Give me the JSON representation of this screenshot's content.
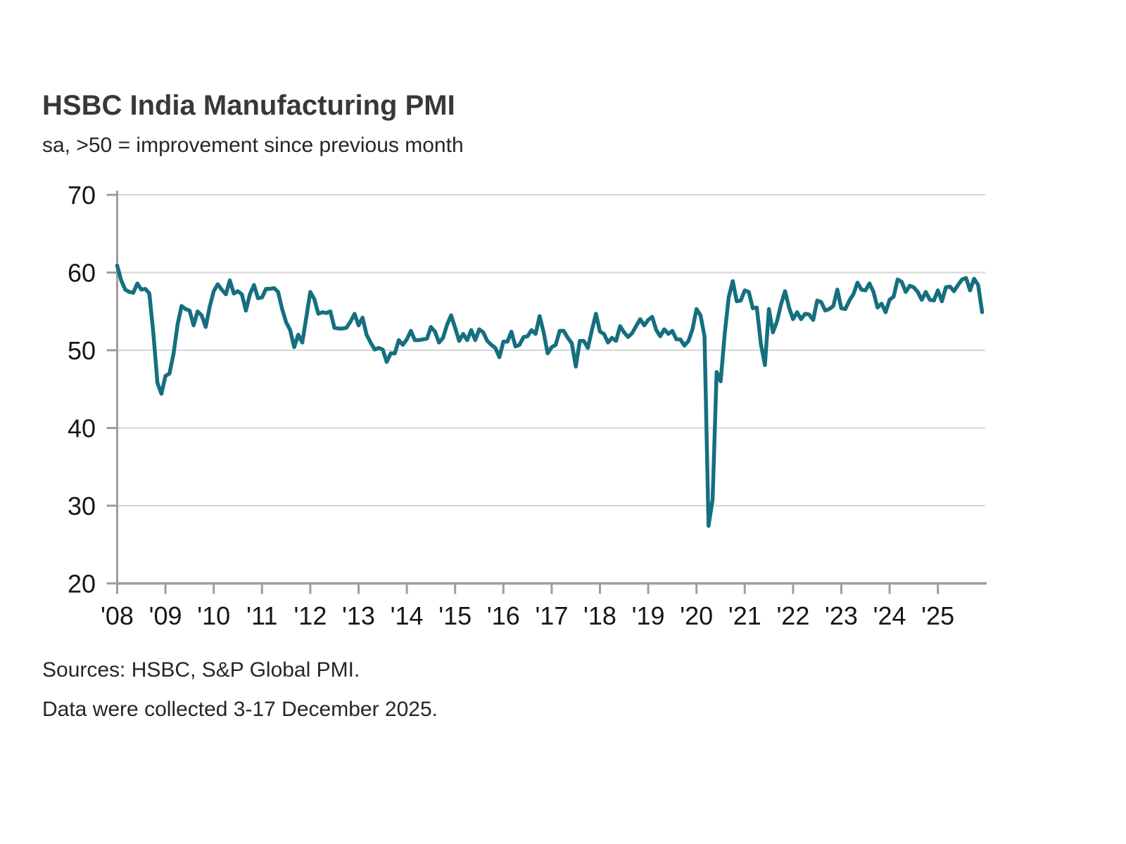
{
  "page": {
    "title": "HSBC India Manufacturing PMI",
    "subtitle": "sa, >50 = improvement since previous month",
    "footer_sources": "Sources: HSBC, S&P Global PMI.",
    "footer_collection": "Data were collected 3-17 December 2025."
  },
  "colors": {
    "line": "#156f80",
    "gridline": "#d6d6d6",
    "axis": "#9e9e9e",
    "tick_label": "#161616",
    "title": "#383838",
    "body_text": "#262626",
    "background": "#ffffff"
  },
  "chart_data": {
    "type": "line",
    "title": "HSBC India Manufacturing PMI",
    "subtitle": "sa, >50 = improvement since previous month",
    "ylabel": "",
    "xlabel": "",
    "ylim": [
      20,
      70
    ],
    "y_ticks": [
      20,
      30,
      40,
      50,
      60,
      70
    ],
    "x_tick_labels": [
      "'08",
      "'09",
      "'10",
      "'11",
      "'12",
      "'13",
      "'14",
      "'15",
      "'16",
      "'17",
      "'18",
      "'19",
      "'20",
      "'21",
      "'22",
      "'23",
      "'24",
      "'25"
    ],
    "x_tick_years": [
      2008,
      2009,
      2010,
      2011,
      2012,
      2013,
      2014,
      2015,
      2016,
      2017,
      2018,
      2019,
      2020,
      2021,
      2022,
      2023,
      2024,
      2025
    ],
    "grid": "horizontal",
    "legend_position": "none",
    "x_start": "2008-01",
    "x_end": "2025-12",
    "x_step_months": 1,
    "reference_level": 50,
    "series": [
      {
        "name": "HSBC India Manufacturing PMI (sa)",
        "color": "#156f80",
        "values": [
          60.9,
          59.0,
          57.8,
          57.5,
          57.4,
          58.6,
          57.8,
          57.9,
          57.3,
          52.2,
          45.8,
          44.4,
          46.7,
          47.0,
          49.5,
          53.3,
          55.7,
          55.3,
          55.1,
          53.2,
          55.0,
          54.5,
          53.0,
          55.6,
          57.6,
          58.5,
          57.8,
          57.2,
          59.0,
          57.3,
          57.6,
          57.2,
          55.1,
          57.2,
          58.4,
          56.7,
          56.8,
          57.9,
          57.9,
          58.0,
          57.5,
          55.3,
          53.6,
          52.6,
          50.4,
          52.0,
          51.0,
          54.2,
          57.5,
          56.6,
          54.7,
          54.9,
          54.8,
          55.0,
          52.9,
          52.8,
          52.8,
          52.9,
          53.7,
          54.7,
          53.2,
          54.2,
          52.0,
          51.0,
          50.1,
          50.3,
          50.1,
          48.5,
          49.6,
          49.6,
          51.3,
          50.7,
          51.4,
          52.5,
          51.3,
          51.3,
          51.4,
          51.5,
          53.0,
          52.4,
          51.0,
          51.6,
          53.3,
          54.5,
          52.9,
          51.2,
          52.1,
          51.3,
          52.6,
          51.3,
          52.7,
          52.3,
          51.2,
          50.7,
          50.3,
          49.1,
          51.1,
          51.1,
          52.4,
          50.5,
          50.7,
          51.7,
          51.8,
          52.6,
          52.1,
          54.4,
          52.3,
          49.6,
          50.4,
          50.7,
          52.5,
          52.5,
          51.6,
          50.9,
          47.9,
          51.2,
          51.2,
          50.3,
          52.6,
          54.7,
          52.4,
          52.1,
          51.0,
          51.6,
          51.2,
          53.1,
          52.3,
          51.7,
          52.2,
          53.1,
          54.0,
          53.2,
          53.9,
          54.3,
          52.6,
          51.8,
          52.7,
          52.1,
          52.5,
          51.4,
          51.4,
          50.6,
          51.2,
          52.7,
          55.3,
          54.5,
          51.8,
          27.4,
          30.8,
          47.2,
          46.0,
          52.0,
          56.8,
          58.9,
          56.3,
          56.4,
          57.7,
          57.5,
          55.4,
          55.5,
          50.8,
          48.1,
          55.3,
          52.3,
          53.7,
          55.9,
          57.6,
          55.5,
          54.0,
          54.9,
          54.0,
          54.7,
          54.6,
          53.9,
          56.4,
          56.2,
          55.1,
          55.3,
          55.7,
          57.8,
          55.4,
          55.3,
          56.4,
          57.2,
          58.7,
          57.8,
          57.7,
          58.6,
          57.5,
          55.5,
          56.0,
          54.9,
          56.5,
          56.9,
          59.1,
          58.8,
          57.5,
          58.3,
          58.1,
          57.5,
          56.5,
          57.5,
          56.5,
          56.4,
          57.7,
          56.3,
          58.1,
          58.2,
          57.6,
          58.4,
          59.1,
          59.3,
          57.7,
          59.2,
          58.4,
          54.9
        ]
      }
    ]
  }
}
